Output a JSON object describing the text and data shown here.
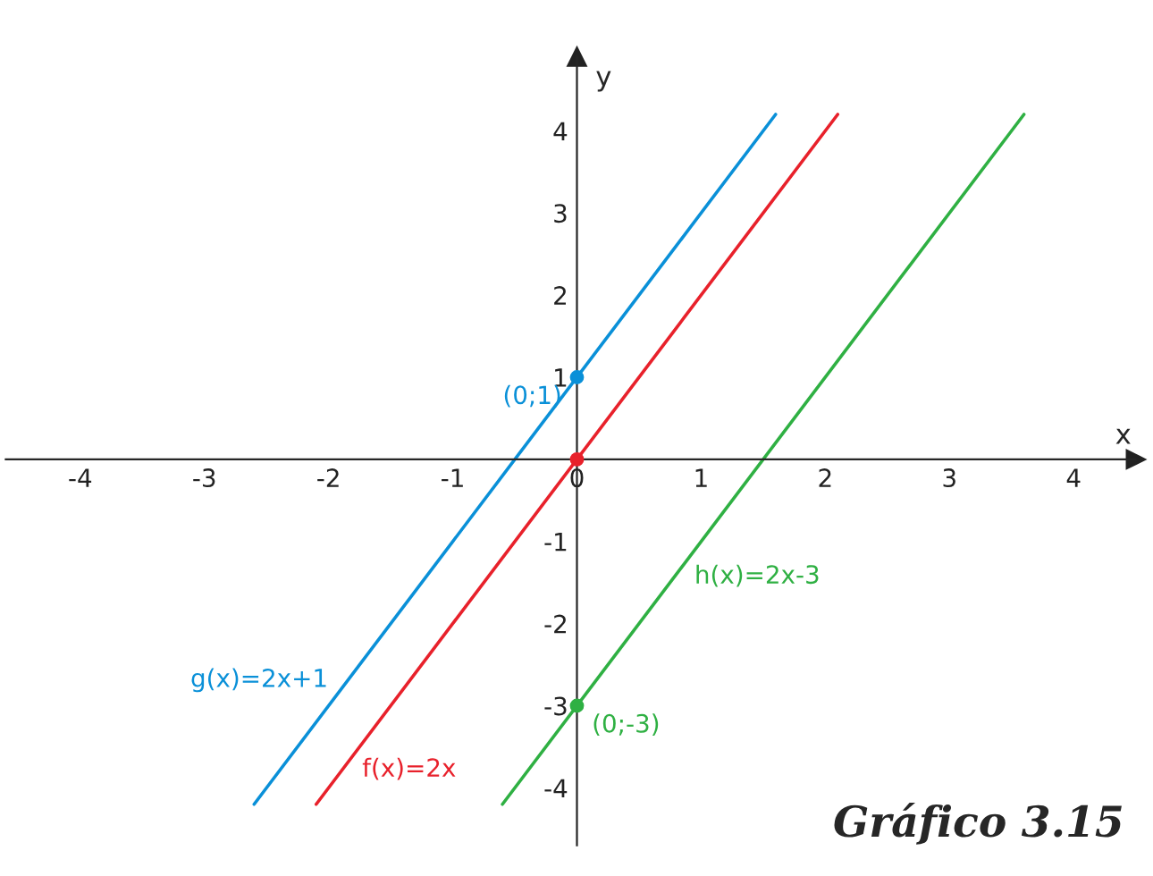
{
  "chart_data": {
    "type": "line",
    "title": "Gráfico 3.15",
    "xlabel": "x",
    "ylabel": "y",
    "xlim": [
      -4.6,
      4.5
    ],
    "ylim": [
      -4.7,
      4.9
    ],
    "xticks": [
      -4,
      -3,
      -2,
      -1,
      0,
      1,
      2,
      3,
      4
    ],
    "yticks": [
      -4,
      -3,
      -2,
      -1,
      1,
      2,
      3,
      4
    ],
    "grid": false,
    "line_style": "solid",
    "series": [
      {
        "name": "g(x)=2x+1",
        "color": "#0a90d8",
        "marker": "none",
        "x": [
          -2.6,
          1.6
        ],
        "values": [
          -4.2,
          4.2
        ]
      },
      {
        "name": "f(x)=2x",
        "color": "#e8212b",
        "marker": "none",
        "x": [
          -2.1,
          2.1
        ],
        "values": [
          -4.2,
          4.2
        ]
      },
      {
        "name": "h(x)=2x-3",
        "color": "#2fb043",
        "marker": "none",
        "x": [
          -0.6,
          3.6
        ],
        "values": [
          -4.2,
          4.2
        ]
      },
      {
        "color": "#0a90d8",
        "type": "scatter",
        "marker": "circle",
        "x": [
          0
        ],
        "values": [
          1
        ]
      },
      {
        "color": "#e8212b",
        "type": "scatter",
        "marker": "circle",
        "x": [
          0
        ],
        "values": [
          0
        ]
      },
      {
        "color": "#2fb043",
        "type": "scatter",
        "marker": "circle",
        "x": [
          0
        ],
        "values": [
          -3
        ]
      }
    ],
    "annotations": [
      {
        "text": "(0;1)",
        "x": 0,
        "y": 1
      },
      {
        "text": "(0;-3)",
        "x": 0,
        "y": -3
      }
    ]
  }
}
